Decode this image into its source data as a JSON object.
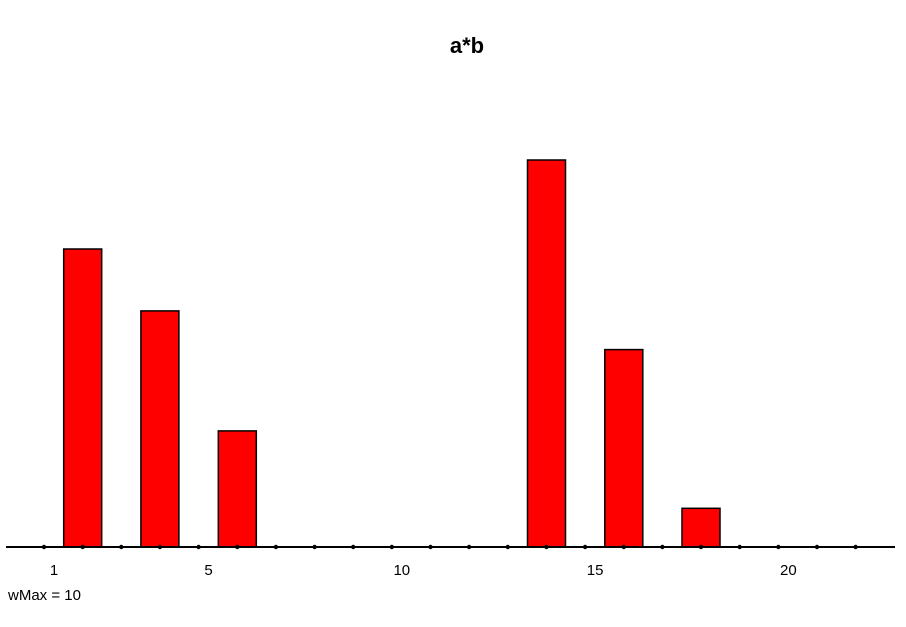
{
  "chart_data": {
    "type": "bar",
    "title": "a*b",
    "x": [
      1,
      2,
      3,
      4,
      5,
      6,
      7,
      8,
      9,
      10,
      11,
      12,
      13,
      14,
      15,
      16,
      17,
      18,
      19,
      20,
      21,
      22
    ],
    "values": [
      0,
      7.7,
      0,
      6.1,
      0,
      3.0,
      0,
      0,
      0,
      0,
      0,
      0,
      0,
      10,
      0,
      5.1,
      0,
      1.0,
      0,
      0,
      0,
      0
    ],
    "tick_labels": [
      "1",
      "5",
      "10",
      "15",
      "20"
    ],
    "tick_values": [
      1,
      5,
      10,
      15,
      20
    ],
    "ylim": [
      0,
      10
    ],
    "annotation": "wMax = 10",
    "bar_color": "#ff0000",
    "grid": false
  }
}
